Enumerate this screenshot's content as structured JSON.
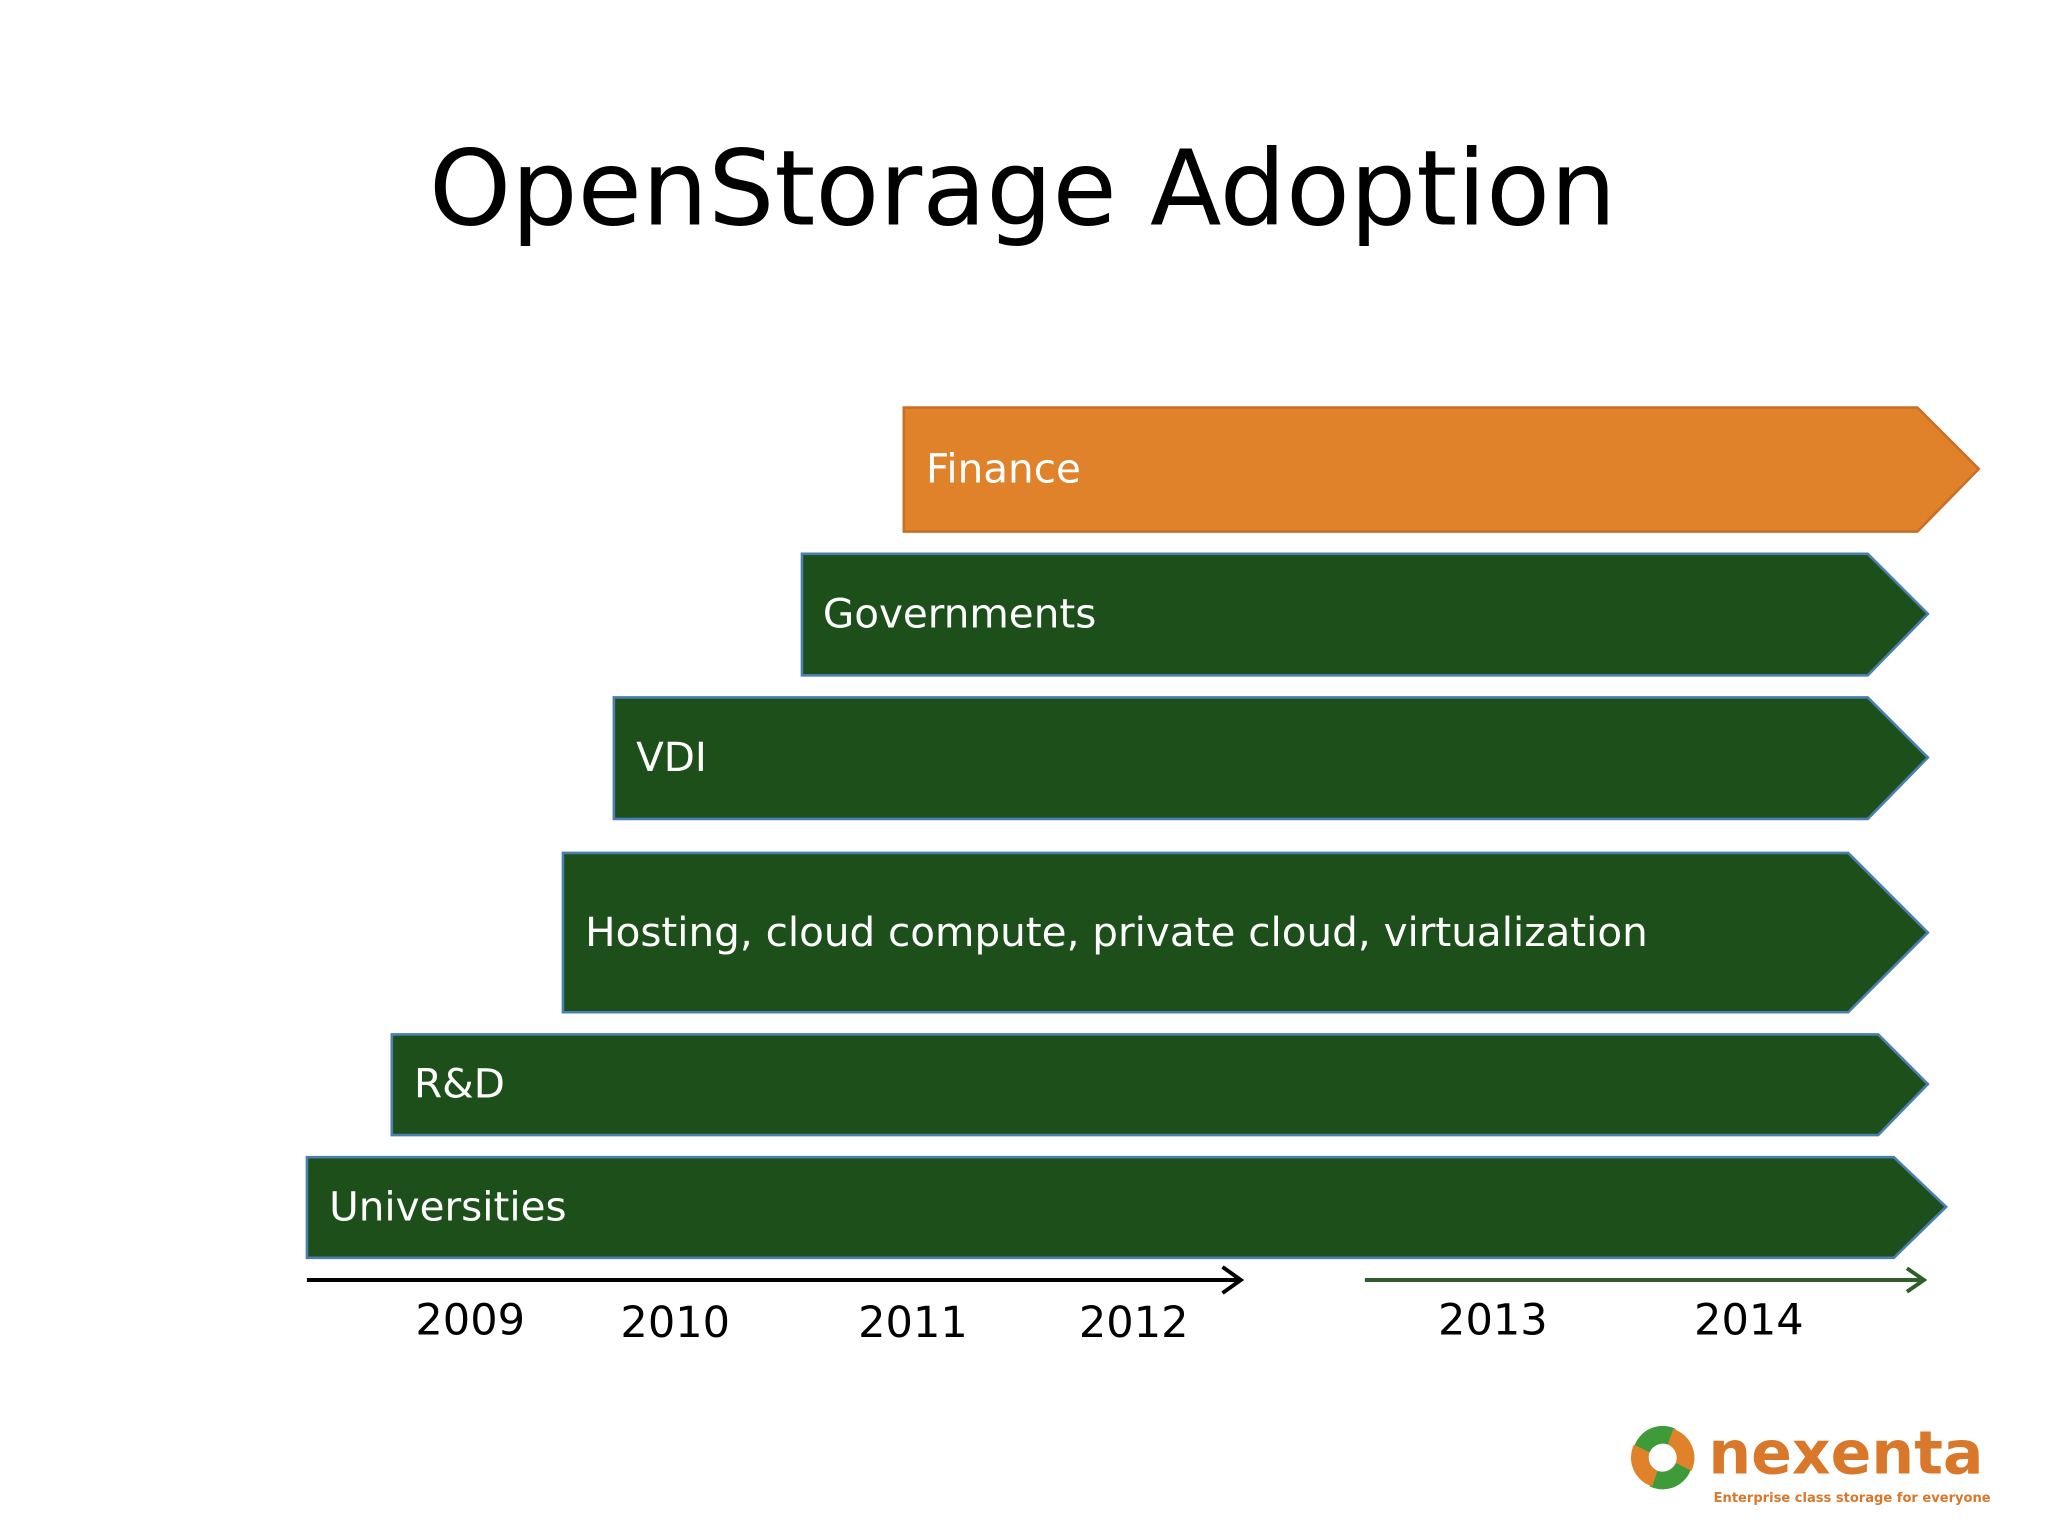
{
  "header": {
    "title": "OpenStorage Adoption"
  },
  "bands": [
    {
      "label": "Finance"
    },
    {
      "label": "Governments"
    },
    {
      "label": "VDI"
    },
    {
      "label": "Hosting, cloud compute, private cloud, virtualization"
    },
    {
      "label": "R&D"
    },
    {
      "label": "Universities"
    }
  ],
  "timeline": {
    "years": [
      "2009",
      "2010",
      "2011",
      "2012",
      "2013",
      "2014"
    ]
  },
  "logo": {
    "name": "nexenta",
    "tagline": "Enterprise class storage for everyone"
  }
}
